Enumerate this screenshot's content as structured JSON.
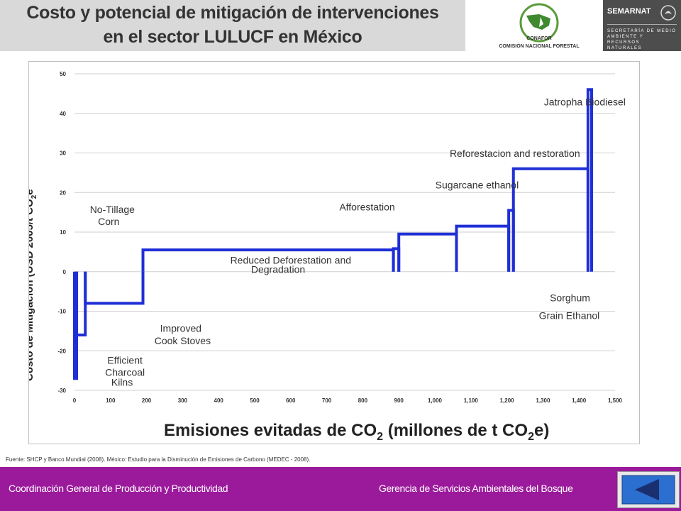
{
  "header": {
    "title_line1": "Costo y potencial de mitigación de intervenciones",
    "title_line2": "en el sector LULUCF en México"
  },
  "logos": {
    "conafor_label": "CONAFOR",
    "conafor_name": "COMISIÓN NACIONAL FORESTAL",
    "semarnat_label": "SEMARNAT",
    "semarnat_sub": "SECRETARÍA DE MEDIO AMBIENTE Y RECURSOS NATURALES"
  },
  "chart_data": {
    "type": "line",
    "xlabel_main": "Emisiones evitadas de CO",
    "xlabel_sub": "2",
    "xlabel_mid": " (millones de t CO",
    "xlabel_sub2": "2",
    "xlabel_end": "e)",
    "ylabel": "Costo de Mitigación  (USD 2005/t CO",
    "ylabel_sub": "2",
    "ylabel_end": "e",
    "xlim": [
      0,
      1500
    ],
    "ylim": [
      -30,
      50
    ],
    "x_ticks": [
      "0",
      "100",
      "200",
      "300",
      "400",
      "500",
      "600",
      "700",
      "800",
      "900",
      "1,000",
      "1,100",
      "1,200",
      "1,300",
      "1,400",
      "1,500"
    ],
    "y_ticks": [
      "-30",
      "-20",
      "-10",
      "0",
      "10",
      "20",
      "30",
      "40",
      "50"
    ],
    "grid": "horizontal",
    "line_color": "#1f2fd6",
    "steps": [
      {
        "x0": 0,
        "x1": 6,
        "y": -27
      },
      {
        "x0": 6,
        "x1": 30,
        "y": -16
      },
      {
        "x0": 30,
        "x1": 190,
        "y": -8
      },
      {
        "x0": 190,
        "x1": 885,
        "y": 5.5
      },
      {
        "x0": 885,
        "x1": 900,
        "y": 5.8
      },
      {
        "x0": 900,
        "x1": 1060,
        "y": 9.5
      },
      {
        "x0": 1060,
        "x1": 1205,
        "y": 11.5
      },
      {
        "x0": 1205,
        "x1": 1218,
        "y": 15.5
      },
      {
        "x0": 1218,
        "x1": 1425,
        "y": 26
      },
      {
        "x0": 1425,
        "x1": 1435,
        "y": 46
      }
    ],
    "annotations": [
      {
        "text": "Jatropha Biodiesel",
        "x": 1416,
        "y": 42
      },
      {
        "text": "Reforestacion and restoration",
        "x": 1222,
        "y": 29
      },
      {
        "text": "Sugarcane  ethanol",
        "x": 1117,
        "y": 21
      },
      {
        "text": "Afforestation",
        "x": 812,
        "y": 15.5
      },
      {
        "text": "No-Tillage",
        "x": 105,
        "y": 14.8
      },
      {
        "text": "Corn",
        "x": 95,
        "y": 11.8
      },
      {
        "text": "Reduced Deforestation and",
        "x": 600,
        "y": 2
      },
      {
        "text": "Degradation",
        "x": 565,
        "y": -0.3
      },
      {
        "text": "Sorghum",
        "x": 1375,
        "y": -7.5
      },
      {
        "text": "Grain Ethanol",
        "x": 1373,
        "y": -12
      },
      {
        "text": "Improved",
        "x": 295,
        "y": -15.2
      },
      {
        "text": "Cook Stoves",
        "x": 300,
        "y": -18.3
      },
      {
        "text": "Efficient",
        "x": 140,
        "y": -23.3
      },
      {
        "text": "Charcoal",
        "x": 140,
        "y": -26.3
      },
      {
        "text": "Kilns",
        "x": 132,
        "y": -28.8
      }
    ]
  },
  "source": "Fuente: SHCP y Banco Mundial (2008). México: Estudio para la Disminución de Emisiones de Carbono (MEDEC - 2008).",
  "footer": {
    "left": "Coordinación General de Producción y Productividad",
    "right": "Gerencia de Servicios Ambientales del Bosque"
  }
}
